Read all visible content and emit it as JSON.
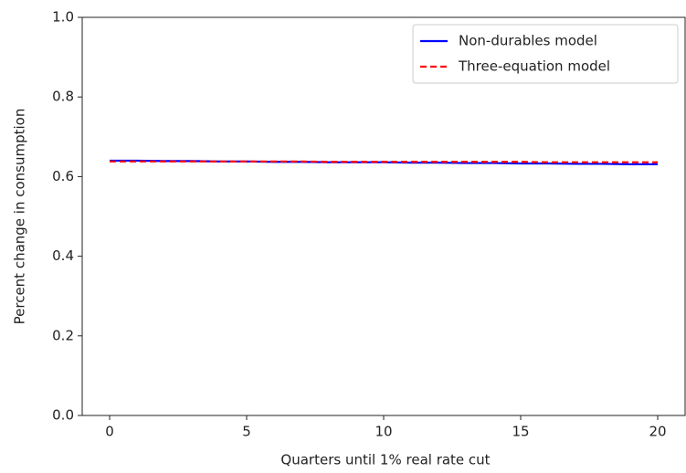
{
  "chart_data": {
    "type": "line",
    "x_label": "Quarters until 1% real rate cut",
    "y_label": "Percent change in consumption",
    "x": [
      0,
      1,
      2,
      3,
      4,
      5,
      6,
      7,
      8,
      9,
      10,
      11,
      12,
      13,
      14,
      15,
      16,
      17,
      18,
      19,
      20
    ],
    "series": [
      {
        "name": "Non-durables model",
        "color": "#0000ff",
        "dash": "solid",
        "values": [
          0.64,
          0.64,
          0.639,
          0.639,
          0.638,
          0.638,
          0.637,
          0.637,
          0.636,
          0.636,
          0.636,
          0.635,
          0.635,
          0.634,
          0.634,
          0.633,
          0.633,
          0.632,
          0.632,
          0.631,
          0.631
        ]
      },
      {
        "name": "Three-equation model",
        "color": "#ff0000",
        "dash": "dashed",
        "values": [
          0.638,
          0.638,
          0.638,
          0.638,
          0.638,
          0.638,
          0.638,
          0.638,
          0.637,
          0.637,
          0.637,
          0.637,
          0.637,
          0.637,
          0.637,
          0.637,
          0.636,
          0.636,
          0.636,
          0.636,
          0.636
        ]
      }
    ],
    "xlim": [
      -1,
      21
    ],
    "ylim": [
      0,
      1
    ],
    "xticks": [
      0,
      5,
      10,
      15,
      20
    ],
    "yticks": [
      {
        "value": 0,
        "label": "0.0"
      },
      0.2,
      0.4,
      0.6,
      0.8,
      {
        "value": 1,
        "label": "1.0"
      }
    ],
    "legend": "upper right"
  }
}
